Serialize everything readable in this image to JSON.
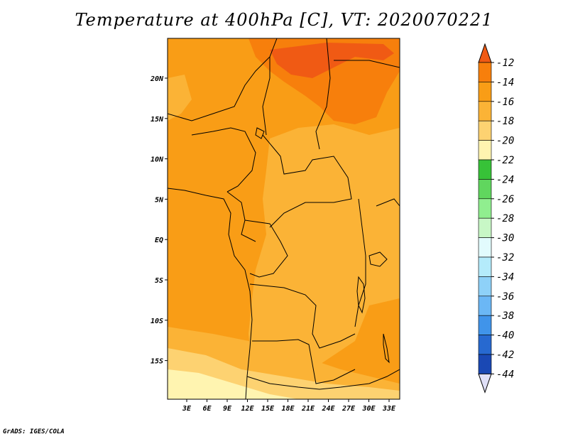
{
  "title": "Temperature at 400hPa [C], VT: 2020070221",
  "credit": "GrADS: IGES/COLA",
  "map": {
    "lon_labels": [
      "3E",
      "6E",
      "9E",
      "12E",
      "15E",
      "18E",
      "21E",
      "24E",
      "27E",
      "30E",
      "33E"
    ],
    "lat_labels": [
      "20N",
      "15N",
      "10N",
      "5N",
      "EQ",
      "5S",
      "10S",
      "15S"
    ]
  },
  "colorbar": {
    "labels": [
      "-12",
      "-14",
      "-16",
      "-18",
      "-20",
      "-22",
      "-24",
      "-26",
      "-28",
      "-30",
      "-32",
      "-34",
      "-36",
      "-38",
      "-40",
      "-42",
      "-44"
    ],
    "colors": [
      "#f05a14",
      "#f77f0c",
      "#f99d16",
      "#fbb336",
      "#fdd271",
      "#fff4b0",
      "#37c238",
      "#60d65e",
      "#90ee8f",
      "#c8f7c6",
      "#e2fbfd",
      "#b4ebfb",
      "#8ed1f8",
      "#6bb7f5",
      "#4094ea",
      "#2769d0",
      "#1a48b4",
      "#101f8c",
      "#e0e0f8"
    ]
  }
}
